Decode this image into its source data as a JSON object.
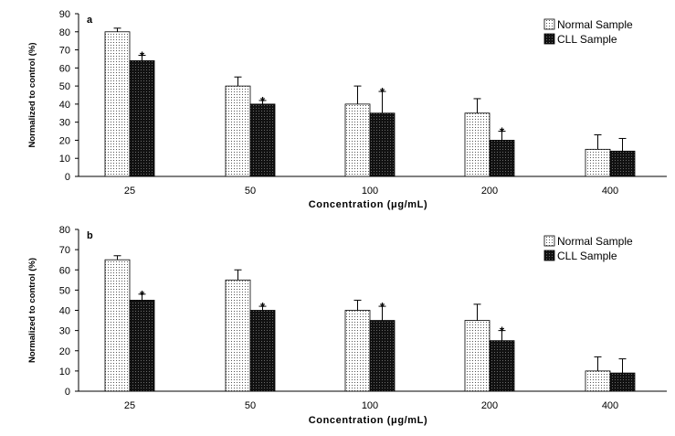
{
  "chart_data": [
    {
      "type": "bar",
      "panel": "a",
      "categories": [
        "25",
        "50",
        "100",
        "200",
        "400"
      ],
      "series": [
        {
          "name": "Normal Sample",
          "values": [
            80,
            50,
            40,
            35,
            15
          ],
          "errors": [
            2,
            5,
            10,
            8,
            8
          ],
          "significant": [
            false,
            false,
            false,
            false,
            false
          ]
        },
        {
          "name": "CLL Sample",
          "values": [
            64,
            40,
            35,
            20,
            14
          ],
          "errors": [
            3,
            2,
            12,
            5,
            7
          ],
          "significant": [
            true,
            true,
            true,
            true,
            false
          ]
        }
      ],
      "xlabel": "Concentration (μg/mL)",
      "ylabel": "Normalized to control (%)",
      "ylim": [
        0,
        90
      ],
      "yticks": [
        0,
        10,
        20,
        30,
        40,
        50,
        60,
        70,
        80,
        90
      ],
      "significance_marker": "*",
      "legend_position": "top-right",
      "grid": false
    },
    {
      "type": "bar",
      "panel": "b",
      "categories": [
        "25",
        "50",
        "100",
        "200",
        "400"
      ],
      "series": [
        {
          "name": "Normal Sample",
          "values": [
            65,
            55,
            40,
            35,
            10
          ],
          "errors": [
            2,
            5,
            5,
            8,
            7
          ],
          "significant": [
            false,
            false,
            false,
            false,
            false
          ]
        },
        {
          "name": "CLL Sample",
          "values": [
            45,
            40,
            35,
            25,
            9
          ],
          "errors": [
            3,
            2,
            7,
            5,
            7
          ],
          "significant": [
            true,
            true,
            true,
            true,
            false
          ]
        }
      ],
      "xlabel": "Concentration (μg/mL)",
      "ylabel": "Normalized to control (%)",
      "ylim": [
        0,
        80
      ],
      "yticks": [
        0,
        10,
        20,
        30,
        40,
        50,
        60,
        70,
        80
      ],
      "significance_marker": "*",
      "legend_position": "top-right",
      "grid": false
    }
  ]
}
